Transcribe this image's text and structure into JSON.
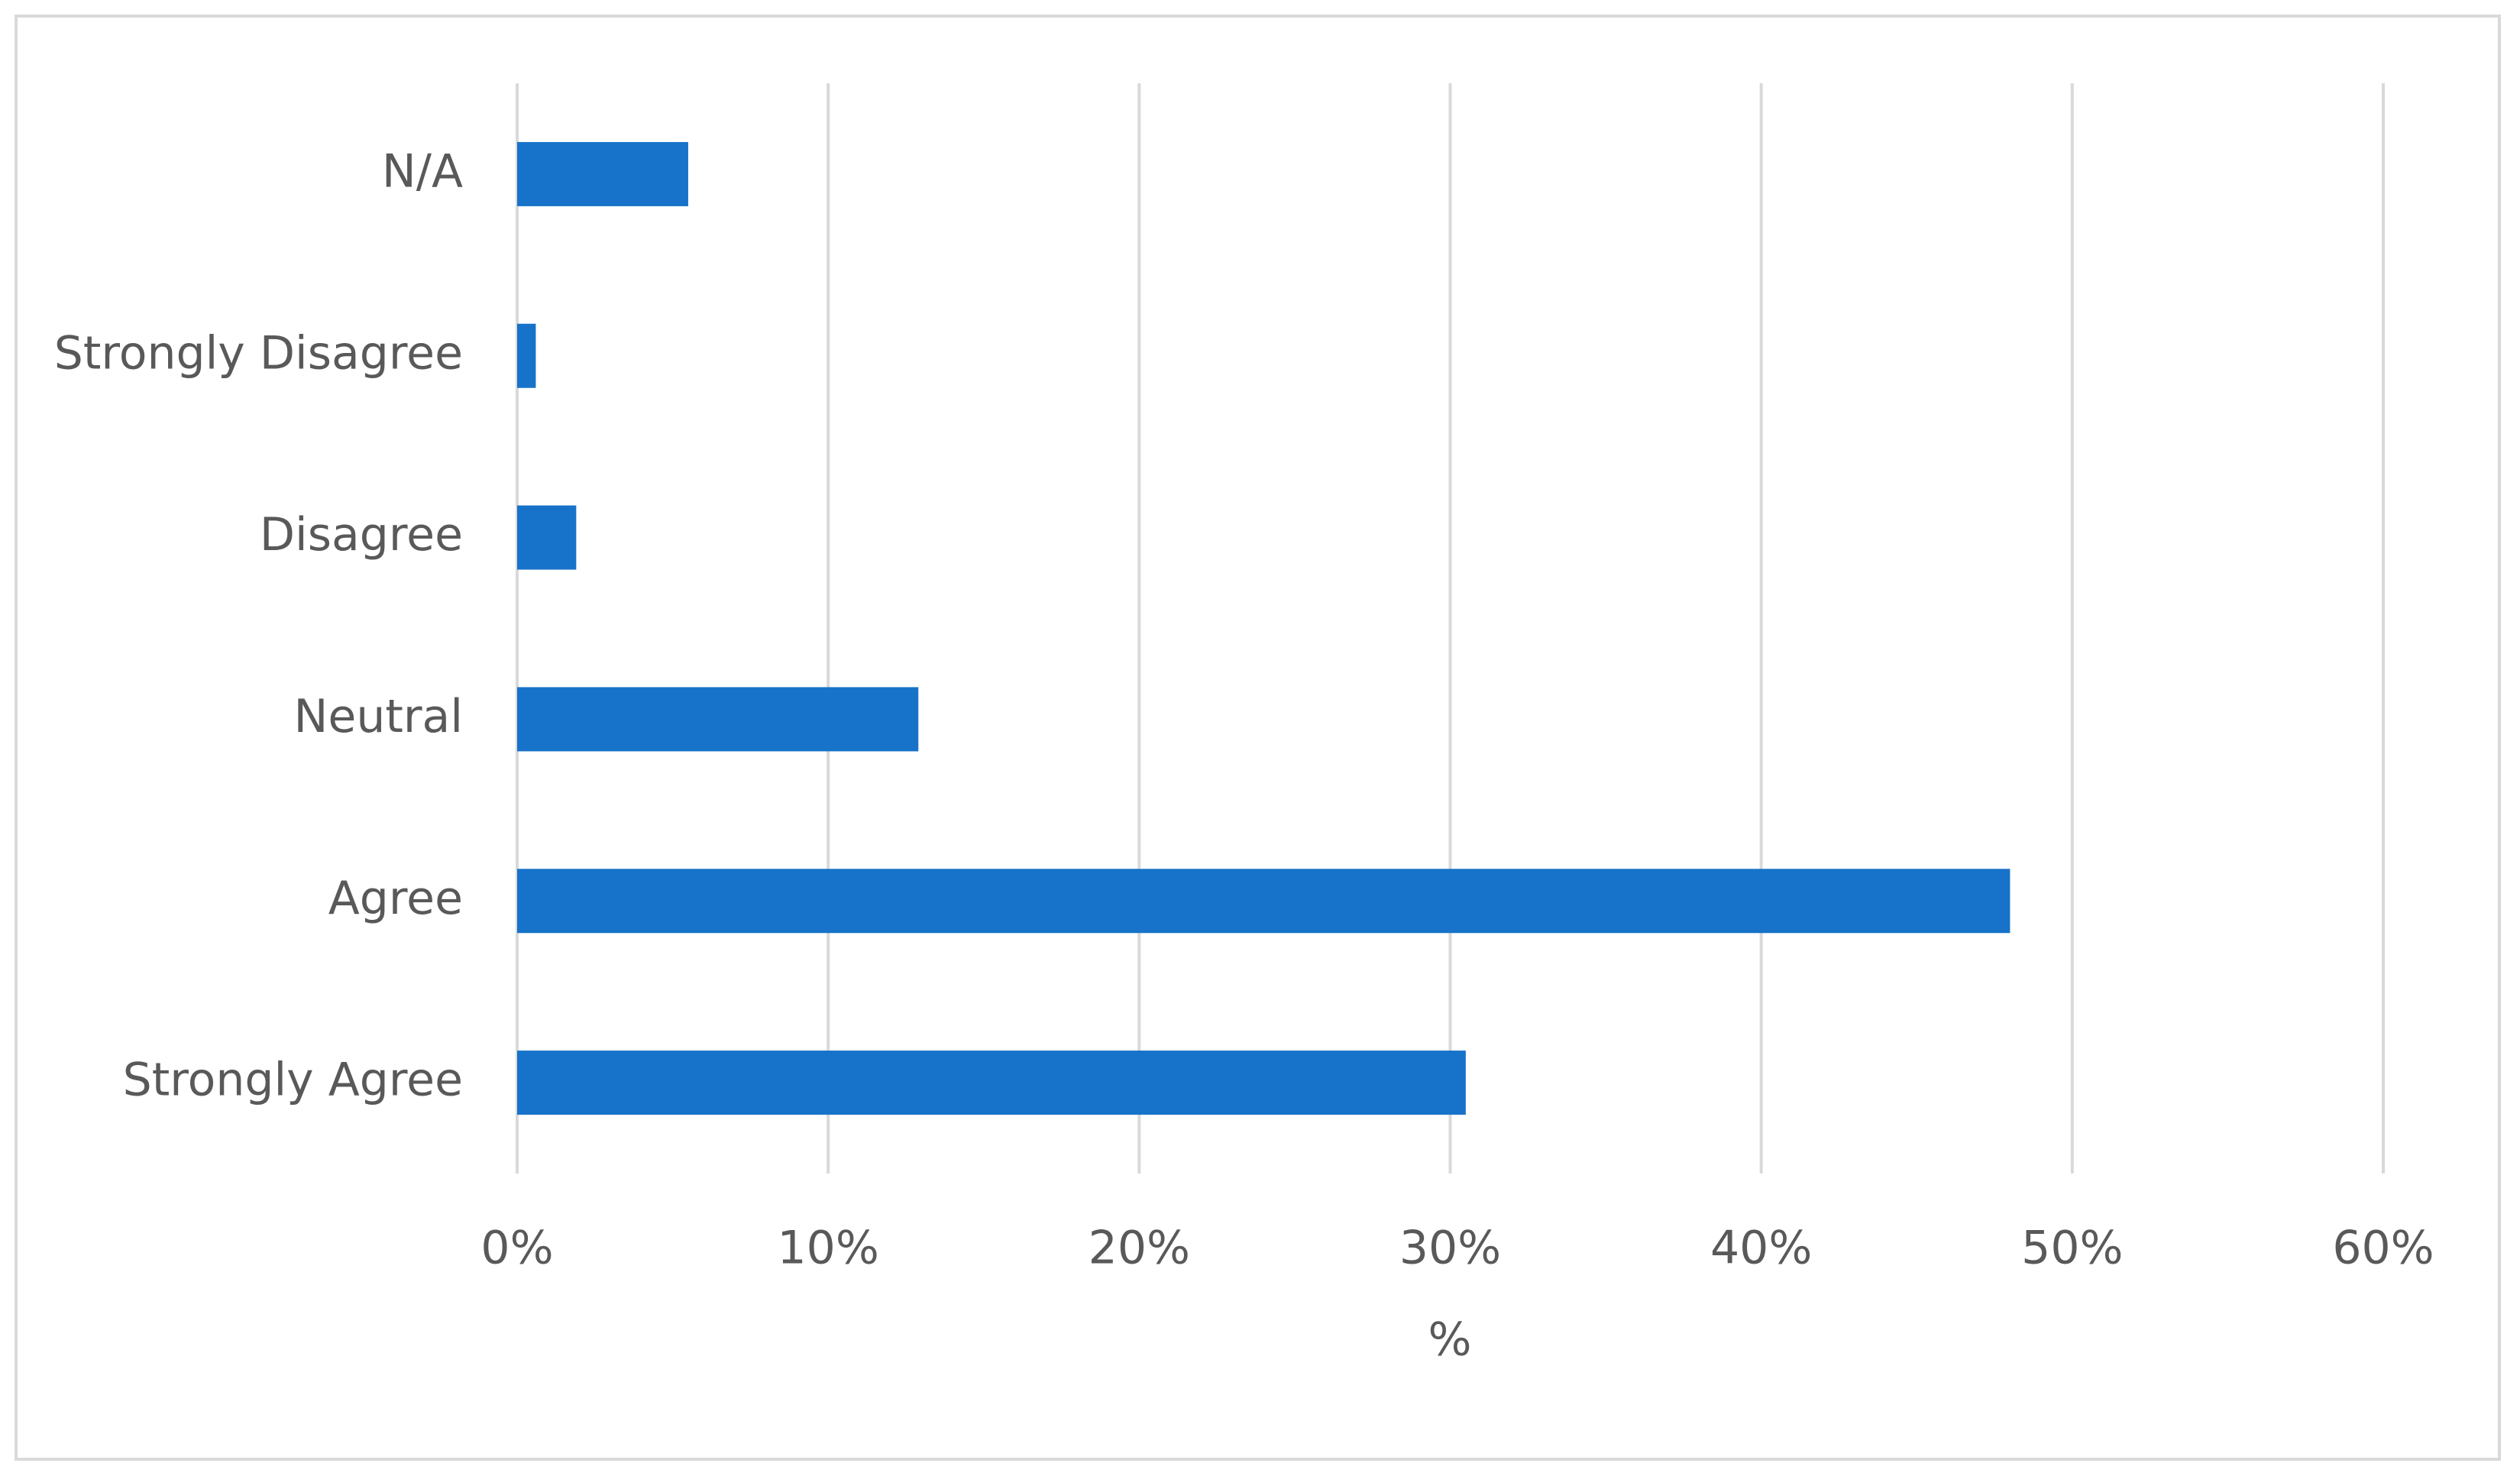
{
  "chart_data": {
    "type": "bar",
    "orientation": "horizontal",
    "categories": [
      "Strongly Agree",
      "Agree",
      "Neutral",
      "Disagree",
      "Strongly Disagree",
      "N/A"
    ],
    "values": [
      30.5,
      48,
      12.9,
      1.9,
      0.6,
      5.5
    ],
    "color": "#1772c9",
    "x_label": "%",
    "xlim": [
      0,
      60
    ],
    "xticks": [
      {
        "value": 0,
        "label": "0%"
      },
      {
        "value": 10,
        "label": "10%"
      },
      {
        "value": 20,
        "label": "20%"
      },
      {
        "value": 30,
        "label": "30%"
      },
      {
        "value": 40,
        "label": "40%"
      },
      {
        "value": 50,
        "label": "50%"
      },
      {
        "value": 60,
        "label": "60%"
      }
    ],
    "grid": true
  }
}
